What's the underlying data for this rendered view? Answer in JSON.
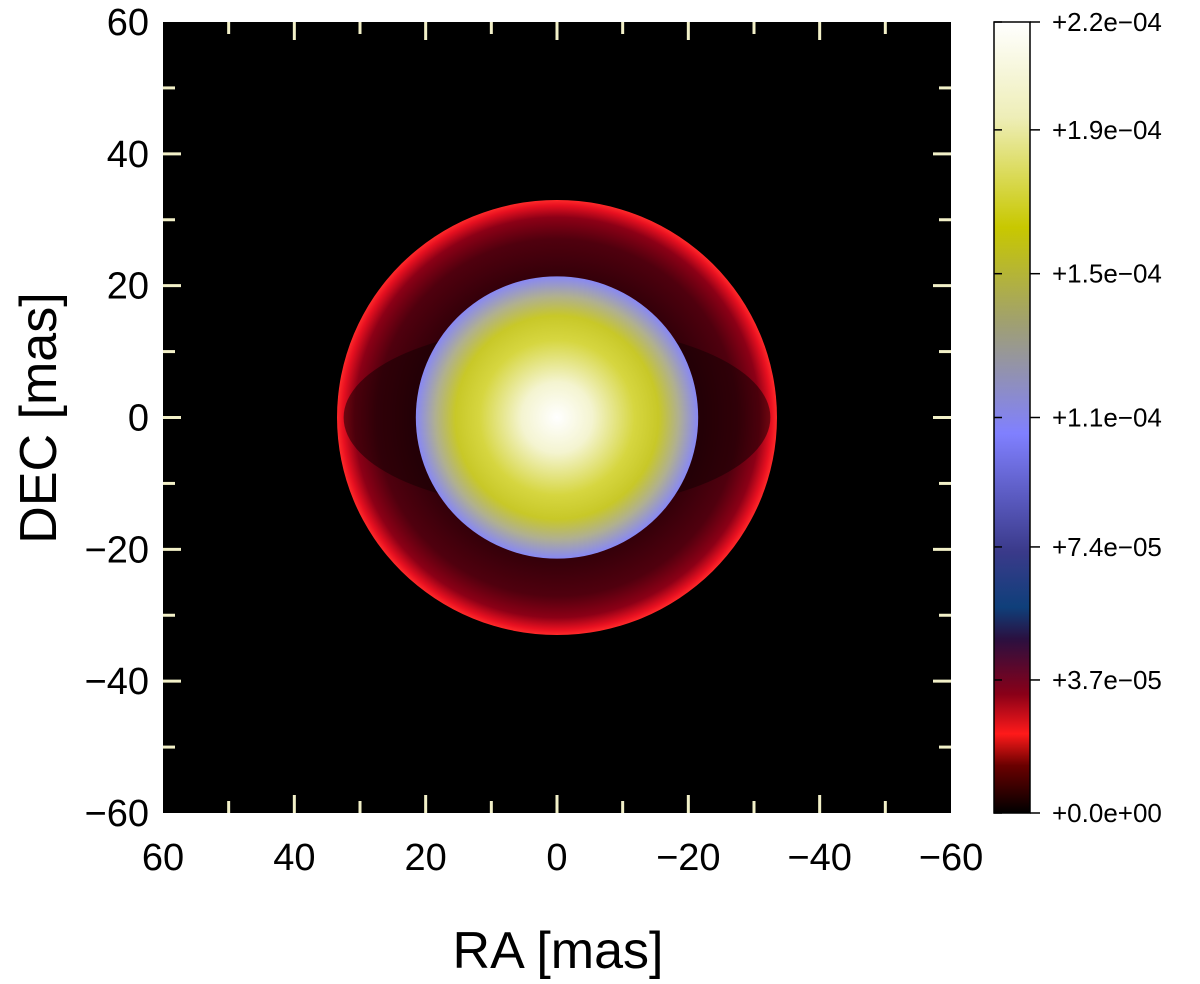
{
  "chart_data": {
    "type": "heatmap",
    "title": "",
    "xlabel": "RA [mas]",
    "ylabel": "DEC [mas]",
    "xlim": [
      60,
      -60
    ],
    "ylim": [
      -60,
      60
    ],
    "x_ticks": [
      "60",
      "40",
      "20",
      "0",
      "−20",
      "−40",
      "−60"
    ],
    "x_tick_values": [
      60,
      40,
      20,
      0,
      -20,
      -40,
      -60
    ],
    "y_ticks": [
      "60",
      "40",
      "20",
      "0",
      "−20",
      "−40",
      "−60"
    ],
    "y_tick_values": [
      60,
      40,
      20,
      0,
      -20,
      -40,
      -60
    ],
    "background_value": 0,
    "features": [
      {
        "name": "central disk",
        "center": [
          0,
          0
        ],
        "radius": 21.5,
        "peak_value": 0.00022,
        "edge_value": 0.000105
      },
      {
        "name": "outer shell",
        "center": [
          0,
          0
        ],
        "radius_x": 33.5,
        "radius_y": 33,
        "inner_radius": 21.5,
        "rim_value": 2e-05,
        "interior_value": 5e-06
      }
    ],
    "colorbar": {
      "min": 0.0,
      "max": 0.00022,
      "tick_labels": [
        "+0.0e+00",
        "+3.7e−05",
        "+7.4e−05",
        "+1.1e−04",
        "+1.5e−04",
        "+1.9e−04",
        "+2.2e−04"
      ],
      "tick_values": [
        0.0,
        3.7e-05,
        7.4e-05,
        0.00011,
        0.00015,
        0.00019,
        0.00022
      ],
      "colormap": [
        {
          "v": 0.0,
          "color": "#000000"
        },
        {
          "v": 0.06,
          "color": "#6a0000"
        },
        {
          "v": 0.1,
          "color": "#ff1a1a"
        },
        {
          "v": 0.15,
          "color": "#8a0018"
        },
        {
          "v": 0.22,
          "color": "#2a1040"
        },
        {
          "v": 0.26,
          "color": "#0f3f7a"
        },
        {
          "v": 0.33,
          "color": "#3a3a8a"
        },
        {
          "v": 0.48,
          "color": "#8080ff"
        },
        {
          "v": 0.62,
          "color": "#a0a070"
        },
        {
          "v": 0.74,
          "color": "#c8c800"
        },
        {
          "v": 0.88,
          "color": "#eeeeb8"
        },
        {
          "v": 1.0,
          "color": "#ffffff"
        }
      ]
    }
  }
}
